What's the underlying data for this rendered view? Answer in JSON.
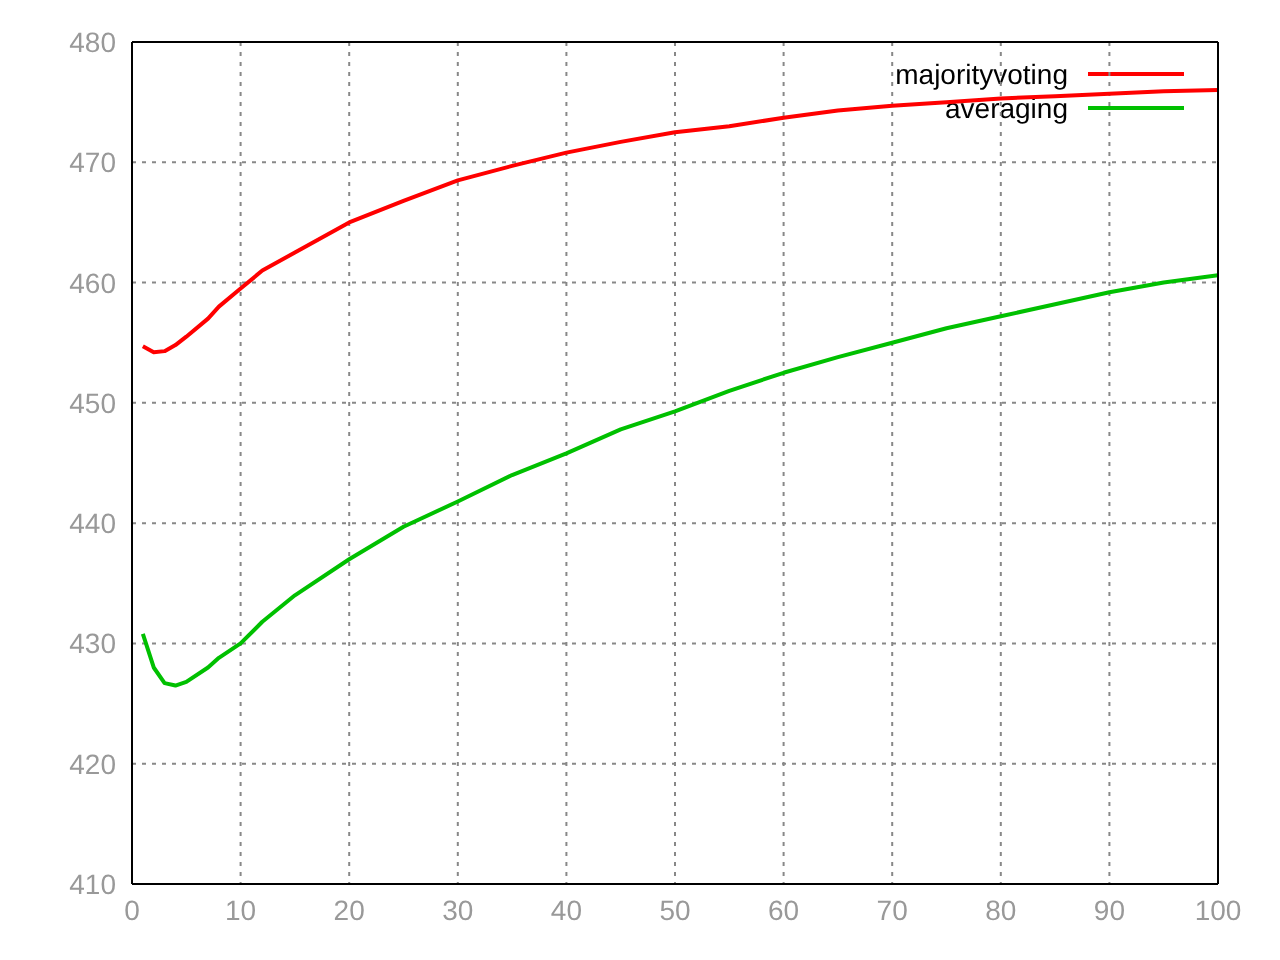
{
  "chart_data": {
    "type": "line",
    "x": [
      1,
      2,
      3,
      4,
      5,
      7,
      8,
      10,
      12,
      15,
      20,
      25,
      30,
      35,
      40,
      45,
      50,
      55,
      60,
      65,
      70,
      75,
      80,
      85,
      90,
      95,
      100
    ],
    "series": [
      {
        "name": "majorityvoting",
        "color": "#ff0000",
        "values": [
          454.7,
          454.2,
          454.3,
          454.8,
          455.5,
          457,
          458,
          459.5,
          461,
          462.5,
          465,
          466.8,
          468.5,
          469.7,
          470.8,
          471.7,
          472.5,
          473,
          473.7,
          474.3,
          474.7,
          475,
          475.3,
          475.5,
          475.7,
          475.9,
          476
        ]
      },
      {
        "name": "averaging",
        "color": "#00c000",
        "values": [
          430.8,
          428,
          426.7,
          426.5,
          426.8,
          428,
          428.8,
          430,
          431.8,
          434,
          437,
          439.7,
          441.8,
          444,
          445.8,
          447.8,
          449.3,
          451,
          452.5,
          453.8,
          455,
          456.2,
          457.2,
          458.2,
          459.2,
          460,
          460.6
        ]
      }
    ],
    "xlim": [
      0,
      100
    ],
    "xticks": [
      0,
      10,
      20,
      30,
      40,
      50,
      60,
      70,
      80,
      90,
      100
    ],
    "ylim": [
      410,
      480
    ],
    "yticks": [
      410,
      420,
      430,
      440,
      450,
      460,
      470,
      480
    ],
    "grid": true,
    "legend": "top right",
    "marker": "none",
    "line_style": "solid"
  }
}
